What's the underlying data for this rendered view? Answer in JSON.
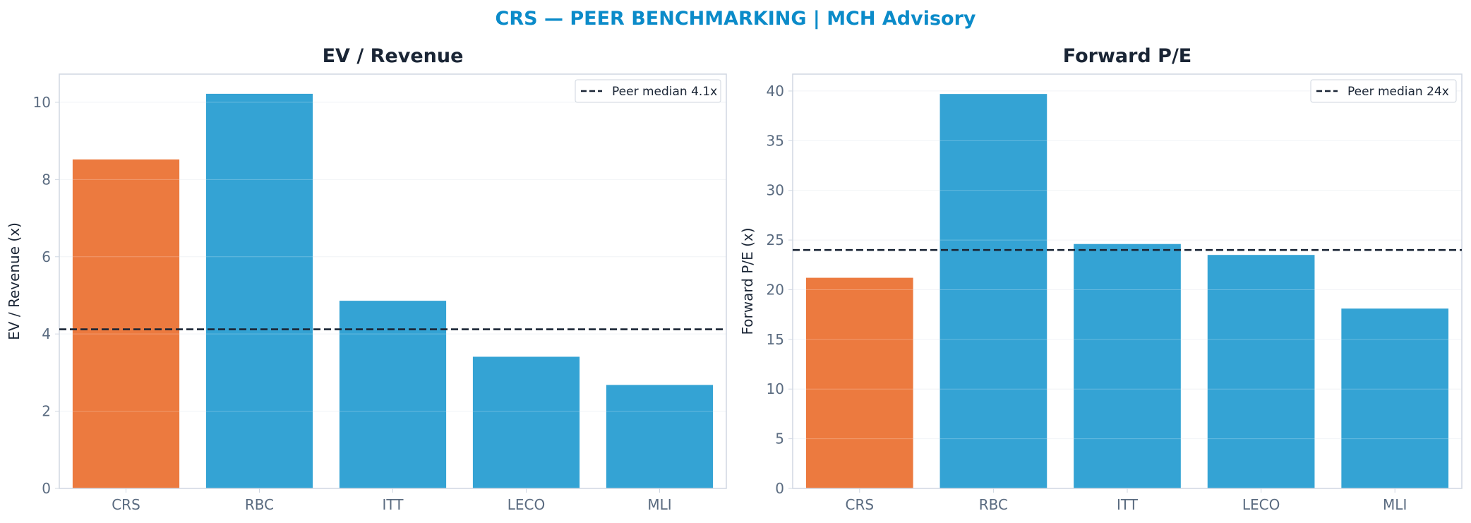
{
  "figure": {
    "title": "CRS — PEER BENCHMARKING | MCH Advisory"
  },
  "colors": {
    "highlight": "#ec7a3f",
    "peer": "#34a3d4",
    "median_line": "#1a2535",
    "axis": "#d0d7e2",
    "grid": "#eef1f5",
    "title_accent": "#0b8bc9"
  },
  "chart_data": [
    {
      "type": "bar",
      "title": "EV / Revenue",
      "xlabel": "",
      "ylabel": "EV / Revenue (x)",
      "categories": [
        "CRS",
        "RBC",
        "ITT",
        "LECO",
        "MLI"
      ],
      "values": [
        8.52,
        10.22,
        4.86,
        3.41,
        2.68
      ],
      "highlight_category": "CRS",
      "ylim": [
        0,
        10.73
      ],
      "yticks": [
        "0",
        "2",
        "4",
        "6",
        "8",
        "10"
      ],
      "ytick_values": [
        0,
        2,
        4,
        6,
        8,
        10
      ],
      "reference_line": {
        "value": 4.12,
        "label": "Peer median 4.1x",
        "style": "dashed"
      },
      "legend": "top-right",
      "grid": true
    },
    {
      "type": "bar",
      "title": "Forward P/E",
      "xlabel": "",
      "ylabel": "Forward P/E (x)",
      "categories": [
        "CRS",
        "RBC",
        "ITT",
        "LECO",
        "MLI"
      ],
      "values": [
        21.2,
        39.7,
        24.6,
        23.5,
        18.1
      ],
      "highlight_category": "CRS",
      "ylim": [
        0,
        41.7
      ],
      "yticks": [
        "0",
        "5",
        "10",
        "15",
        "20",
        "25",
        "30",
        "35",
        "40"
      ],
      "ytick_values": [
        0,
        5,
        10,
        15,
        20,
        25,
        30,
        35,
        40
      ],
      "reference_line": {
        "value": 24.0,
        "label": "Peer median 24x",
        "style": "dashed"
      },
      "legend": "top-right",
      "grid": true
    }
  ]
}
